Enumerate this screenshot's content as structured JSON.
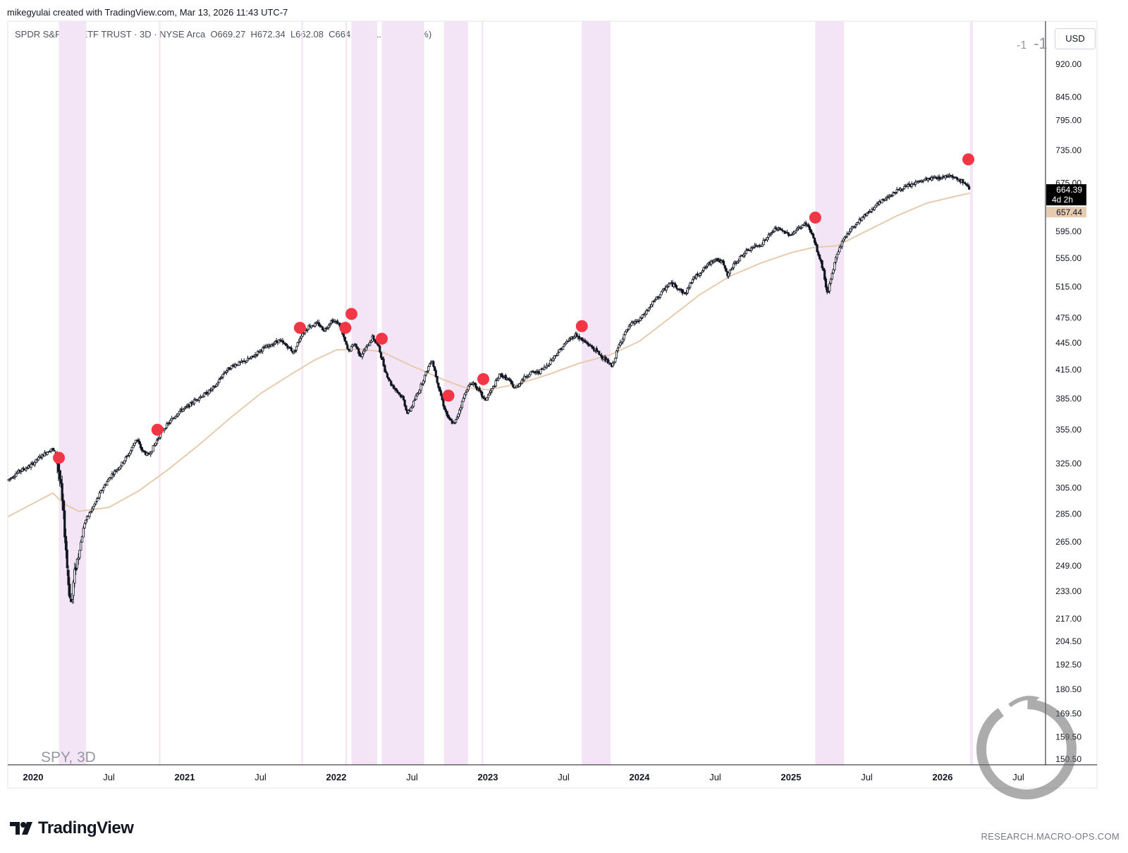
{
  "header": {
    "credit": "mikegyulai created with TradingView.com, Mar 13, 2026 11:43 UTC-7",
    "symbol": "SPDR S&P 500 ETF TRUST · 3D · NYSE Arca",
    "open": "O669.27",
    "high": "H672.34",
    "low": "L662.08",
    "close": "C664.39",
    "change": "−1.67 (−0.25%)"
  },
  "controls": {
    "currency": "USD",
    "indicator_small": "-1",
    "indicator_large": "-1"
  },
  "watermark": {
    "symbol_interval": "SPY, 3D"
  },
  "footer": {
    "brand": "TradingView",
    "url": "RESEARCH.MACRO-OPS.COM"
  },
  "colors": {
    "candle": "#131722",
    "moving_average": "#e6cbb0",
    "shaded_region": "#f3e5f5",
    "signal_dot": "#f23645",
    "price_label_bg": "#000000",
    "ma_label_bg": "#e6cbb0"
  },
  "icons": [
    "tradingview-logo-icon",
    "ouroboros-watermark-icon"
  ],
  "chart_data": {
    "type": "line",
    "scale": "log",
    "x_ticks": [
      "2020",
      "Jul",
      "2021",
      "Jul",
      "2022",
      "Jul",
      "2023",
      "Jul",
      "2024",
      "Jul",
      "2025",
      "Jul",
      "2026",
      "Jul"
    ],
    "y_ticks": [
      920.0,
      845.0,
      795.0,
      735.0,
      675.0,
      595.0,
      555.0,
      515.0,
      475.0,
      445.0,
      415.0,
      385.0,
      355.0,
      325.0,
      305.0,
      285.0,
      265.0,
      249.0,
      233.0,
      217.0,
      204.5,
      192.5,
      180.5,
      169.5,
      159.5,
      150.5
    ],
    "ylim": [
      147,
      990
    ],
    "xlim": [
      2020.0,
      2026.65
    ],
    "last_price": {
      "value": "664.39",
      "countdown": "4d 2h"
    },
    "ma_value": "657.44",
    "series": [
      {
        "kind": "price",
        "points": [
          [
            2019.83,
            311
          ],
          [
            2019.9,
            318
          ],
          [
            2019.98,
            323
          ],
          [
            2020.05,
            331
          ],
          [
            2020.12,
            338
          ],
          [
            2020.15,
            334
          ],
          [
            2020.18,
            308
          ],
          [
            2020.21,
            270
          ],
          [
            2020.23,
            240
          ],
          [
            2020.25,
            226
          ],
          [
            2020.28,
            248
          ],
          [
            2020.31,
            262
          ],
          [
            2020.34,
            279
          ],
          [
            2020.4,
            291
          ],
          [
            2020.46,
            305
          ],
          [
            2020.52,
            316
          ],
          [
            2020.58,
            324
          ],
          [
            2020.64,
            335
          ],
          [
            2020.68,
            347
          ],
          [
            2020.72,
            336
          ],
          [
            2020.76,
            332
          ],
          [
            2020.8,
            341
          ],
          [
            2020.85,
            354
          ],
          [
            2020.9,
            362
          ],
          [
            2020.96,
            372
          ],
          [
            2021.02,
            377
          ],
          [
            2021.08,
            385
          ],
          [
            2021.14,
            390
          ],
          [
            2021.2,
            397
          ],
          [
            2021.26,
            412
          ],
          [
            2021.32,
            420
          ],
          [
            2021.38,
            423
          ],
          [
            2021.44,
            428
          ],
          [
            2021.5,
            437
          ],
          [
            2021.56,
            442
          ],
          [
            2021.62,
            448
          ],
          [
            2021.68,
            441
          ],
          [
            2021.72,
            434
          ],
          [
            2021.77,
            455
          ],
          [
            2021.82,
            465
          ],
          [
            2021.88,
            468
          ],
          [
            2021.92,
            460
          ],
          [
            2021.97,
            472
          ],
          [
            2022.02,
            468
          ],
          [
            2022.05,
            450
          ],
          [
            2022.08,
            435
          ],
          [
            2022.12,
            445
          ],
          [
            2022.16,
            430
          ],
          [
            2022.2,
            440
          ],
          [
            2022.24,
            452
          ],
          [
            2022.28,
            440
          ],
          [
            2022.32,
            415
          ],
          [
            2022.36,
            400
          ],
          [
            2022.4,
            393
          ],
          [
            2022.44,
            385
          ],
          [
            2022.47,
            370
          ],
          [
            2022.5,
            378
          ],
          [
            2022.55,
            395
          ],
          [
            2022.6,
            415
          ],
          [
            2022.63,
            427
          ],
          [
            2022.67,
            400
          ],
          [
            2022.71,
            377
          ],
          [
            2022.74,
            365
          ],
          [
            2022.78,
            360
          ],
          [
            2022.82,
            377
          ],
          [
            2022.86,
            395
          ],
          [
            2022.9,
            402
          ],
          [
            2022.94,
            393
          ],
          [
            2022.98,
            383
          ],
          [
            2023.03,
            395
          ],
          [
            2023.08,
            410
          ],
          [
            2023.13,
            405
          ],
          [
            2023.18,
            395
          ],
          [
            2023.23,
            405
          ],
          [
            2023.28,
            412
          ],
          [
            2023.33,
            412
          ],
          [
            2023.38,
            418
          ],
          [
            2023.43,
            428
          ],
          [
            2023.48,
            438
          ],
          [
            2023.53,
            448
          ],
          [
            2023.58,
            455
          ],
          [
            2023.62,
            448
          ],
          [
            2023.66,
            444
          ],
          [
            2023.7,
            438
          ],
          [
            2023.74,
            432
          ],
          [
            2023.78,
            425
          ],
          [
            2023.82,
            418
          ],
          [
            2023.86,
            440
          ],
          [
            2023.9,
            455
          ],
          [
            2023.95,
            468
          ],
          [
            2024.0,
            472
          ],
          [
            2024.05,
            484
          ],
          [
            2024.1,
            497
          ],
          [
            2024.15,
            508
          ],
          [
            2024.2,
            520
          ],
          [
            2024.25,
            515
          ],
          [
            2024.3,
            505
          ],
          [
            2024.35,
            525
          ],
          [
            2024.4,
            535
          ],
          [
            2024.45,
            545
          ],
          [
            2024.5,
            555
          ],
          [
            2024.55,
            548
          ],
          [
            2024.58,
            530
          ],
          [
            2024.62,
            545
          ],
          [
            2024.68,
            560
          ],
          [
            2024.74,
            570
          ],
          [
            2024.8,
            575
          ],
          [
            2024.86,
            590
          ],
          [
            2024.9,
            600
          ],
          [
            2024.95,
            595
          ],
          [
            2025.0,
            590
          ],
          [
            2025.05,
            600
          ],
          [
            2025.1,
            608
          ],
          [
            2025.14,
            590
          ],
          [
            2025.18,
            560
          ],
          [
            2025.21,
            540
          ],
          [
            2025.24,
            505
          ],
          [
            2025.27,
            530
          ],
          [
            2025.3,
            560
          ],
          [
            2025.35,
            585
          ],
          [
            2025.4,
            600
          ],
          [
            2025.46,
            615
          ],
          [
            2025.52,
            628
          ],
          [
            2025.58,
            640
          ],
          [
            2025.64,
            652
          ],
          [
            2025.7,
            662
          ],
          [
            2025.76,
            668
          ],
          [
            2025.82,
            675
          ],
          [
            2025.88,
            680
          ],
          [
            2025.94,
            684
          ],
          [
            2026.0,
            685
          ],
          [
            2026.05,
            690
          ],
          [
            2026.1,
            682
          ],
          [
            2026.14,
            676
          ],
          [
            2026.18,
            664
          ]
        ]
      },
      {
        "kind": "moving_average",
        "points": [
          [
            2019.83,
            283
          ],
          [
            2020.0,
            293
          ],
          [
            2020.13,
            301
          ],
          [
            2020.2,
            293
          ],
          [
            2020.3,
            287
          ],
          [
            2020.5,
            290
          ],
          [
            2020.7,
            303
          ],
          [
            2020.9,
            321
          ],
          [
            2021.1,
            342
          ],
          [
            2021.3,
            366
          ],
          [
            2021.5,
            390
          ],
          [
            2021.7,
            410
          ],
          [
            2021.85,
            425
          ],
          [
            2022.0,
            437
          ],
          [
            2022.15,
            438
          ],
          [
            2022.3,
            435
          ],
          [
            2022.5,
            419
          ],
          [
            2022.7,
            405
          ],
          [
            2022.85,
            396
          ],
          [
            2023.0,
            394
          ],
          [
            2023.2,
            400
          ],
          [
            2023.4,
            410
          ],
          [
            2023.6,
            422
          ],
          [
            2023.8,
            431
          ],
          [
            2024.0,
            447
          ],
          [
            2024.2,
            475
          ],
          [
            2024.4,
            505
          ],
          [
            2024.6,
            530
          ],
          [
            2024.8,
            548
          ],
          [
            2025.0,
            563
          ],
          [
            2025.15,
            571
          ],
          [
            2025.3,
            573
          ],
          [
            2025.5,
            596
          ],
          [
            2025.7,
            620
          ],
          [
            2025.9,
            641
          ],
          [
            2026.1,
            653
          ],
          [
            2026.18,
            657.44
          ]
        ]
      }
    ],
    "signal_dots": [
      [
        2020.17,
        330
      ],
      [
        2020.82,
        355
      ],
      [
        2021.76,
        463
      ],
      [
        2022.06,
        463
      ],
      [
        2022.1,
        480
      ],
      [
        2022.3,
        450
      ],
      [
        2022.74,
        388
      ],
      [
        2022.97,
        405
      ],
      [
        2023.62,
        465
      ],
      [
        2025.16,
        617
      ],
      [
        2026.17,
        718
      ]
    ],
    "shaded_regions": [
      [
        2020.17,
        2020.35
      ],
      [
        2020.83,
        2020.84
      ],
      [
        2021.77,
        2021.78
      ],
      [
        2022.06,
        2022.07
      ],
      [
        2022.1,
        2022.27
      ],
      [
        2022.3,
        2022.58
      ],
      [
        2022.71,
        2022.87
      ],
      [
        2022.96,
        2022.97
      ],
      [
        2023.62,
        2023.81
      ],
      [
        2025.16,
        2025.35
      ],
      [
        2026.18,
        2026.2
      ]
    ]
  }
}
